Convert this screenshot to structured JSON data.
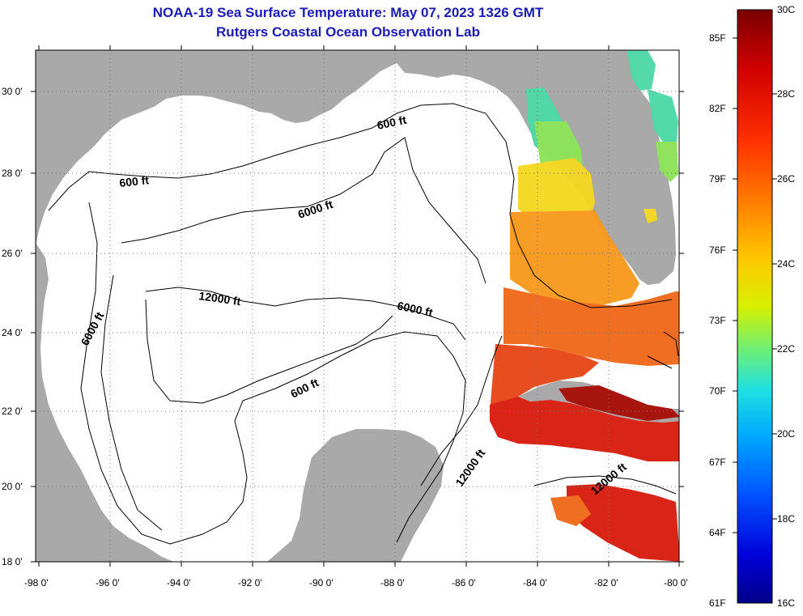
{
  "title": "NOAA-19 Sea Surface Temperature:  May 07, 2023 1326 GMT",
  "subtitle": "Rutgers Coastal Ocean Observation Lab",
  "lat_ticks": [
    "30 0'",
    "28 0'",
    "26 0'",
    "24 0'",
    "22 0'",
    "20 0'",
    "18 0'"
  ],
  "lon_ticks": [
    "-98 0'",
    "-96 0'",
    "-94 0'",
    "-92 0'",
    "-90 0'",
    "-88 0'",
    "-86 0'",
    "-84 0'",
    "-82 0'",
    "-80 0'"
  ],
  "contours": [
    "600 ft",
    "600 ft",
    "6000 ft",
    "12000 ft",
    "6000 ft",
    "6000 ft",
    "600 ft",
    "12000 ft",
    "12000 ft"
  ],
  "colorbar": {
    "f_labels": [
      "85F",
      "82F",
      "79F",
      "76F",
      "73F",
      "70F",
      "67F",
      "64F",
      "61F"
    ],
    "c_labels": [
      "30C",
      "28C",
      "26C",
      "24C",
      "22C",
      "20C",
      "18C",
      "16C"
    ]
  },
  "colors": {
    "land": "#a9a9a9",
    "title": "#1b1bb8",
    "sst_warm": "#d81e10",
    "sst_mid": "#f06a1a",
    "sst_cool": "#f4d823",
    "sst_cold": "#4fd9a8"
  }
}
